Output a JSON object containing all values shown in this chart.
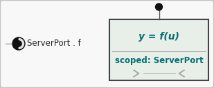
{
  "bg_color": "#f2f2f2",
  "outer_box_facecolor": "#f8f8f8",
  "outer_box_edgecolor": "#c0c0c0",
  "inner_box_facecolor": "#e8eee8",
  "inner_box_edgecolor": "#444444",
  "teal_color": "#007070",
  "text_serverport_f": "ServerPort . f",
  "text_y_eq_fu": "y = f(u)",
  "text_scoped": "scoped: ServerPort",
  "dot_color": "#111111",
  "line_color": "#888888",
  "chevron_fill": "#c8ccc8",
  "chevron_edge": "#aaaaaa",
  "divider_color": "#aaaaaa"
}
